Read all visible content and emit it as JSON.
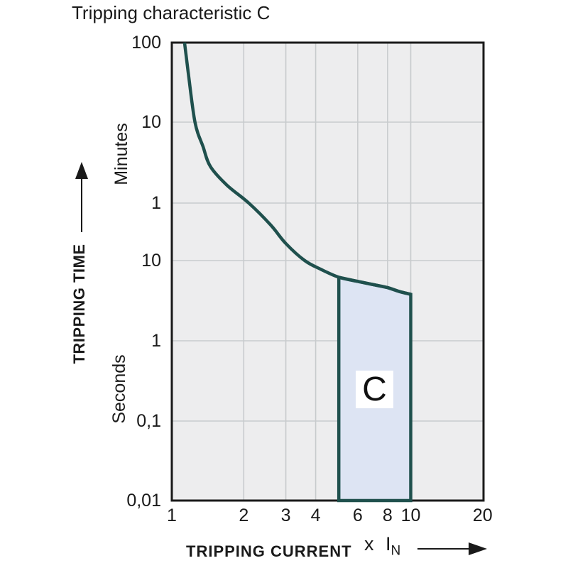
{
  "chart_data": {
    "type": "line",
    "title": "Tripping characteristic C",
    "x_axis": {
      "title": "TRIPPING CURRENT",
      "unit_prefix": "x I",
      "unit_subscript": "N",
      "scale": "log",
      "ticks": [
        1,
        2,
        3,
        4,
        6,
        8,
        10,
        20
      ],
      "range": [
        1,
        20
      ]
    },
    "y_axis": {
      "title": "TRIPPING TIME",
      "upper_unit": "Minutes",
      "lower_unit": "Seconds",
      "scale": "log",
      "tick_labels": [
        "100",
        "10",
        "1",
        "10",
        "1",
        "0,1",
        "0,01"
      ],
      "tick_seconds": [
        6000,
        600,
        60,
        10,
        1,
        0.1,
        0.01
      ],
      "range_seconds": [
        0.01,
        6000
      ]
    },
    "series": [
      {
        "name": "tripping-curve",
        "points": [
          [
            1.13,
            6000
          ],
          [
            1.17,
            2600
          ],
          [
            1.25,
            600
          ],
          [
            1.35,
            300
          ],
          [
            1.45,
            170
          ],
          [
            1.7,
            100
          ],
          [
            2.1,
            60
          ],
          [
            2.6,
            30
          ],
          [
            3.0,
            17
          ],
          [
            3.6,
            10
          ],
          [
            4.2,
            7.8
          ],
          [
            5,
            6.2
          ],
          [
            6,
            5.5
          ],
          [
            7,
            5.0
          ],
          [
            8,
            4.6
          ],
          [
            9,
            4.1
          ],
          [
            10,
            3.8
          ]
        ]
      }
    ],
    "region": {
      "label": "C",
      "x_range": [
        5,
        10
      ],
      "bottom_time_s": 0.01
    },
    "colors": {
      "curve": "#1f504d",
      "region_fill": "#dde4f3",
      "plot_bg": "#ededee",
      "grid": "#c8cbcd",
      "frame": "#1a1a1a",
      "text": "#1a1a1a"
    },
    "grid": "on",
    "legend": "none"
  }
}
